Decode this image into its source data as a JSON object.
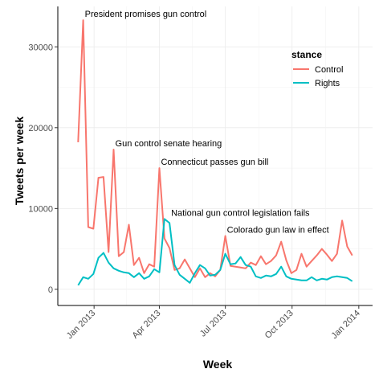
{
  "chart_data": {
    "type": "line",
    "xlabel": "Week",
    "ylabel": "Tweets per week",
    "ylim": [
      -2000,
      35000
    ],
    "y_ticks": [
      0,
      10000,
      20000,
      30000
    ],
    "y_tick_labels": [
      "0",
      "10000",
      "20000",
      "30000"
    ],
    "x_ticks": [
      "2013-01-01",
      "2013-04-01",
      "2013-07-01",
      "2013-10-01",
      "2014-01-01"
    ],
    "x_tick_labels": [
      "Jan 2013",
      "Apr 2013",
      "Jul 2013",
      "Oct 2013",
      "Jan 2014"
    ],
    "xlim": [
      "2012-11-12",
      "2014-01-20"
    ],
    "grid": true,
    "legend": {
      "title": "stance",
      "position": "top-right"
    },
    "series": [
      {
        "name": "Control",
        "color": "#F8766D",
        "points": [
          [
            "2012-12-10",
            18200
          ],
          [
            "2012-12-17",
            33300
          ],
          [
            "2012-12-24",
            7700
          ],
          [
            "2012-12-31",
            7500
          ],
          [
            "2013-01-07",
            13800
          ],
          [
            "2013-01-14",
            13900
          ],
          [
            "2013-01-21",
            4600
          ],
          [
            "2013-01-28",
            17300
          ],
          [
            "2013-02-04",
            4100
          ],
          [
            "2013-02-11",
            4600
          ],
          [
            "2013-02-18",
            8000
          ],
          [
            "2013-02-25",
            3000
          ],
          [
            "2013-03-04",
            3900
          ],
          [
            "2013-03-11",
            2000
          ],
          [
            "2013-03-18",
            3100
          ],
          [
            "2013-03-25",
            2800
          ],
          [
            "2013-04-01",
            15000
          ],
          [
            "2013-04-08",
            6300
          ],
          [
            "2013-04-15",
            5100
          ],
          [
            "2013-04-22",
            2400
          ],
          [
            "2013-04-29",
            2600
          ],
          [
            "2013-05-06",
            3700
          ],
          [
            "2013-05-13",
            2600
          ],
          [
            "2013-05-20",
            1500
          ],
          [
            "2013-05-27",
            2600
          ],
          [
            "2013-06-03",
            1500
          ],
          [
            "2013-06-10",
            2000
          ],
          [
            "2013-06-17",
            1600
          ],
          [
            "2013-06-24",
            2400
          ],
          [
            "2013-07-01",
            6600
          ],
          [
            "2013-07-08",
            2900
          ],
          [
            "2013-07-15",
            2800
          ],
          [
            "2013-07-22",
            2700
          ],
          [
            "2013-07-29",
            2600
          ],
          [
            "2013-08-05",
            3300
          ],
          [
            "2013-08-12",
            3000
          ],
          [
            "2013-08-19",
            4100
          ],
          [
            "2013-08-26",
            3100
          ],
          [
            "2013-09-02",
            3500
          ],
          [
            "2013-09-09",
            4200
          ],
          [
            "2013-09-16",
            5900
          ],
          [
            "2013-09-23",
            3600
          ],
          [
            "2013-09-30",
            2000
          ],
          [
            "2013-10-07",
            2400
          ],
          [
            "2013-10-14",
            4400
          ],
          [
            "2013-10-21",
            2800
          ],
          [
            "2013-10-28",
            3500
          ],
          [
            "2013-11-04",
            4200
          ],
          [
            "2013-11-11",
            5000
          ],
          [
            "2013-11-18",
            4300
          ],
          [
            "2013-11-25",
            3500
          ],
          [
            "2013-12-02",
            4400
          ],
          [
            "2013-12-09",
            8500
          ],
          [
            "2013-12-16",
            5300
          ],
          [
            "2013-12-23",
            4200
          ]
        ]
      },
      {
        "name": "Rights",
        "color": "#00BFC4",
        "points": [
          [
            "2012-12-10",
            500
          ],
          [
            "2012-12-17",
            1500
          ],
          [
            "2012-12-24",
            1300
          ],
          [
            "2012-12-31",
            1900
          ],
          [
            "2013-01-07",
            3900
          ],
          [
            "2013-01-14",
            4500
          ],
          [
            "2013-01-21",
            3300
          ],
          [
            "2013-01-28",
            2600
          ],
          [
            "2013-02-04",
            2300
          ],
          [
            "2013-02-11",
            2100
          ],
          [
            "2013-02-18",
            2000
          ],
          [
            "2013-02-25",
            1500
          ],
          [
            "2013-03-04",
            2000
          ],
          [
            "2013-03-11",
            1300
          ],
          [
            "2013-03-18",
            1600
          ],
          [
            "2013-03-25",
            2500
          ],
          [
            "2013-04-01",
            2100
          ],
          [
            "2013-04-08",
            8700
          ],
          [
            "2013-04-15",
            8200
          ],
          [
            "2013-04-22",
            3000
          ],
          [
            "2013-04-29",
            1800
          ],
          [
            "2013-05-06",
            1300
          ],
          [
            "2013-05-13",
            800
          ],
          [
            "2013-05-20",
            2000
          ],
          [
            "2013-05-27",
            3000
          ],
          [
            "2013-06-03",
            2600
          ],
          [
            "2013-06-10",
            1700
          ],
          [
            "2013-06-17",
            1800
          ],
          [
            "2013-06-24",
            2400
          ],
          [
            "2013-07-01",
            4400
          ],
          [
            "2013-07-08",
            3100
          ],
          [
            "2013-07-15",
            3200
          ],
          [
            "2013-07-22",
            4000
          ],
          [
            "2013-07-29",
            3000
          ],
          [
            "2013-08-05",
            2800
          ],
          [
            "2013-08-12",
            1600
          ],
          [
            "2013-08-19",
            1400
          ],
          [
            "2013-08-26",
            1700
          ],
          [
            "2013-09-02",
            1600
          ],
          [
            "2013-09-09",
            1900
          ],
          [
            "2013-09-16",
            2800
          ],
          [
            "2013-09-23",
            1600
          ],
          [
            "2013-09-30",
            1300
          ],
          [
            "2013-10-07",
            1200
          ],
          [
            "2013-10-14",
            1100
          ],
          [
            "2013-10-21",
            1100
          ],
          [
            "2013-10-28",
            1500
          ],
          [
            "2013-11-04",
            1100
          ],
          [
            "2013-11-11",
            1300
          ],
          [
            "2013-11-18",
            1200
          ],
          [
            "2013-11-25",
            1500
          ],
          [
            "2013-12-02",
            1600
          ],
          [
            "2013-12-09",
            1500
          ],
          [
            "2013-12-16",
            1400
          ],
          [
            "2013-12-23",
            1000
          ]
        ]
      }
    ],
    "annotations": [
      {
        "text": "President promises gun control",
        "x": "2012-12-17",
        "y": 33300
      },
      {
        "text": "Gun control senate hearing",
        "x": "2013-01-28",
        "y": 17300
      },
      {
        "text": "Connecticut passes gun bill",
        "x": "2013-04-01",
        "y": 15000
      },
      {
        "text": "National gun control legislation fails",
        "x": "2013-04-15",
        "y": 8700
      },
      {
        "text": "Colorado gun law in effect",
        "x": "2013-07-01",
        "y": 6600
      }
    ]
  }
}
